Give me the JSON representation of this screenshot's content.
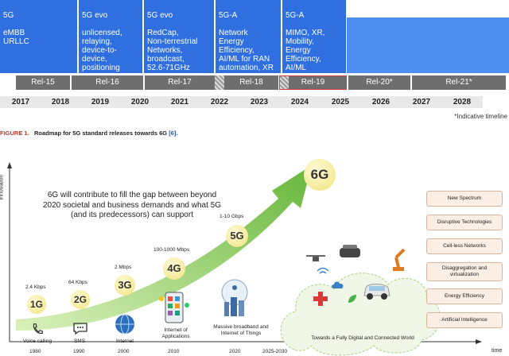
{
  "top_chart": {
    "blocks": [
      {
        "title": "5G",
        "text": "eMBB\nURLLC"
      },
      {
        "title": "5G evo",
        "text": "unlicensed,\nrelaying,\ndevice-to-\ndevice,\npositioning"
      },
      {
        "title": "5G evo",
        "text": "RedCap,\nNon-terrestrial\nNetworks,\nbroadcast,\n52.6-71GHz"
      },
      {
        "title": "5G-A",
        "text": "Network\nEnergy\nEfficiency,\nAI/ML for RAN\nautomation, XR"
      },
      {
        "title": "5G-A",
        "text": "MIMO, XR,\nMobility,\nEnergy\nEfficiency,\nAI/ML"
      }
    ],
    "releases": [
      "Rel-15",
      "Rel-16",
      "Rel-17",
      "Rel-18",
      "Rel-19",
      "Rel-20*",
      "Rel-21*"
    ],
    "years": [
      "2017",
      "2018",
      "2019",
      "2020",
      "2021",
      "2022",
      "2023",
      "2024",
      "2025",
      "2026",
      "2027",
      "2028"
    ],
    "footnote": "*Indicative timeline"
  },
  "figure1": {
    "label": "FIGURE 1.",
    "caption": "Roadmap for 5G standard releases towards 6G",
    "ref": "[6]."
  },
  "roadmap": {
    "y_axis_label": "innovation",
    "x_axis_label": "time",
    "statement": "6G will contribute to fill the gap between beyond\n2020 societal and business demands and what 5G\n(and its predecessors) can support",
    "generations": [
      {
        "name": "1G",
        "speed": "2.4 Kbps",
        "caption": "Voice calling",
        "year": "1980"
      },
      {
        "name": "2G",
        "speed": "64 Kbps",
        "caption": "SMS",
        "year": "1990"
      },
      {
        "name": "3G",
        "speed": "2 Mbps",
        "caption": "Internet",
        "year": "2000"
      },
      {
        "name": "4G",
        "speed": "100-1000 Mbps",
        "caption": "Internet of\nApplications",
        "year": "2010"
      },
      {
        "name": "5G",
        "speed": "1-10 Gbps",
        "caption": "Massive broadband and\nInternet of Things",
        "year": "2020"
      },
      {
        "name": "6G",
        "speed": "",
        "caption": "Towards a Fully Digital and Connected World",
        "year": "2025-2030"
      }
    ],
    "features": [
      "New Spectrum",
      "Disruptive Technologies",
      "Cell-less Networks",
      "Disaggregation and\nvirtualization",
      "Energy Efficiency",
      "Artificial Intelligence"
    ]
  },
  "colors": {
    "block_blue": "#2f6fe0",
    "release_gray": "#6e6e6e",
    "arrow_green": "#7cc243",
    "rel19_outline": "#d93a3a",
    "feature_box": "#fbeee4"
  }
}
